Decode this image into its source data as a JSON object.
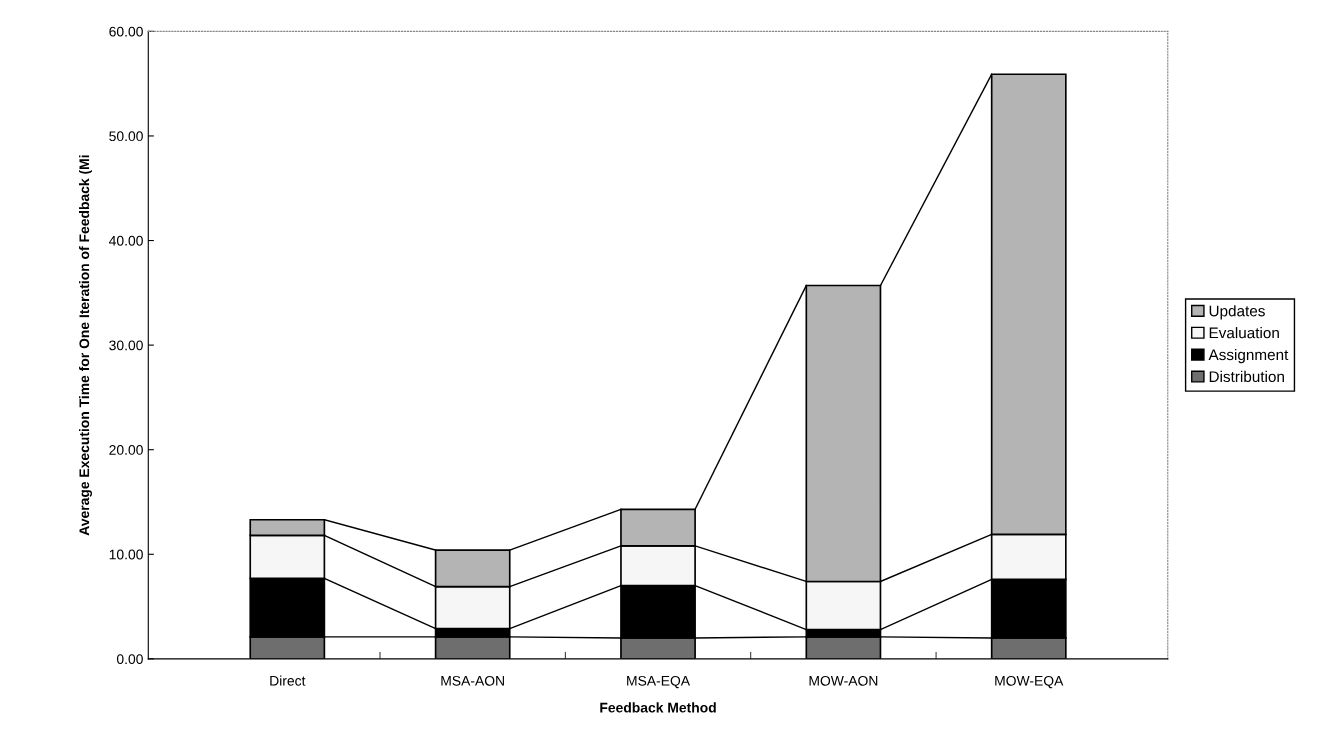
{
  "chart_data": {
    "type": "bar",
    "stacked": true,
    "xlabel": "Feedback Method",
    "ylabel": "Average Execution Time for One Iteration of Feedback (Mi",
    "categories": [
      "Direct",
      "MSA-AON",
      "MSA-EQA",
      "MOW-AON",
      "MOW-EQA"
    ],
    "series": [
      {
        "name": "Distribution",
        "color": "#6e6e6e",
        "values": [
          2.1,
          2.1,
          2.0,
          2.1,
          2.0
        ]
      },
      {
        "name": "Assignment",
        "color": "#000000",
        "values": [
          5.6,
          0.8,
          5.0,
          0.7,
          5.6
        ]
      },
      {
        "name": "Evaluation",
        "color": "#f6f6f6",
        "values": [
          4.1,
          4.0,
          3.8,
          4.6,
          4.3
        ]
      },
      {
        "name": "Updates",
        "color": "#b4b4b4",
        "values": [
          1.5,
          3.5,
          3.5,
          28.3,
          44.0
        ]
      }
    ],
    "ylim": [
      0,
      60
    ],
    "yticks": [
      {
        "value": 0,
        "label": "0.00"
      },
      {
        "value": 10,
        "label": "10.00"
      },
      {
        "value": 20,
        "label": "20.00"
      },
      {
        "value": 30,
        "label": "30.00"
      },
      {
        "value": 40,
        "label": "40.00"
      },
      {
        "value": 50,
        "label": "50.00"
      },
      {
        "value": 60,
        "label": "60.00"
      }
    ],
    "grid": false,
    "legend": "right"
  }
}
